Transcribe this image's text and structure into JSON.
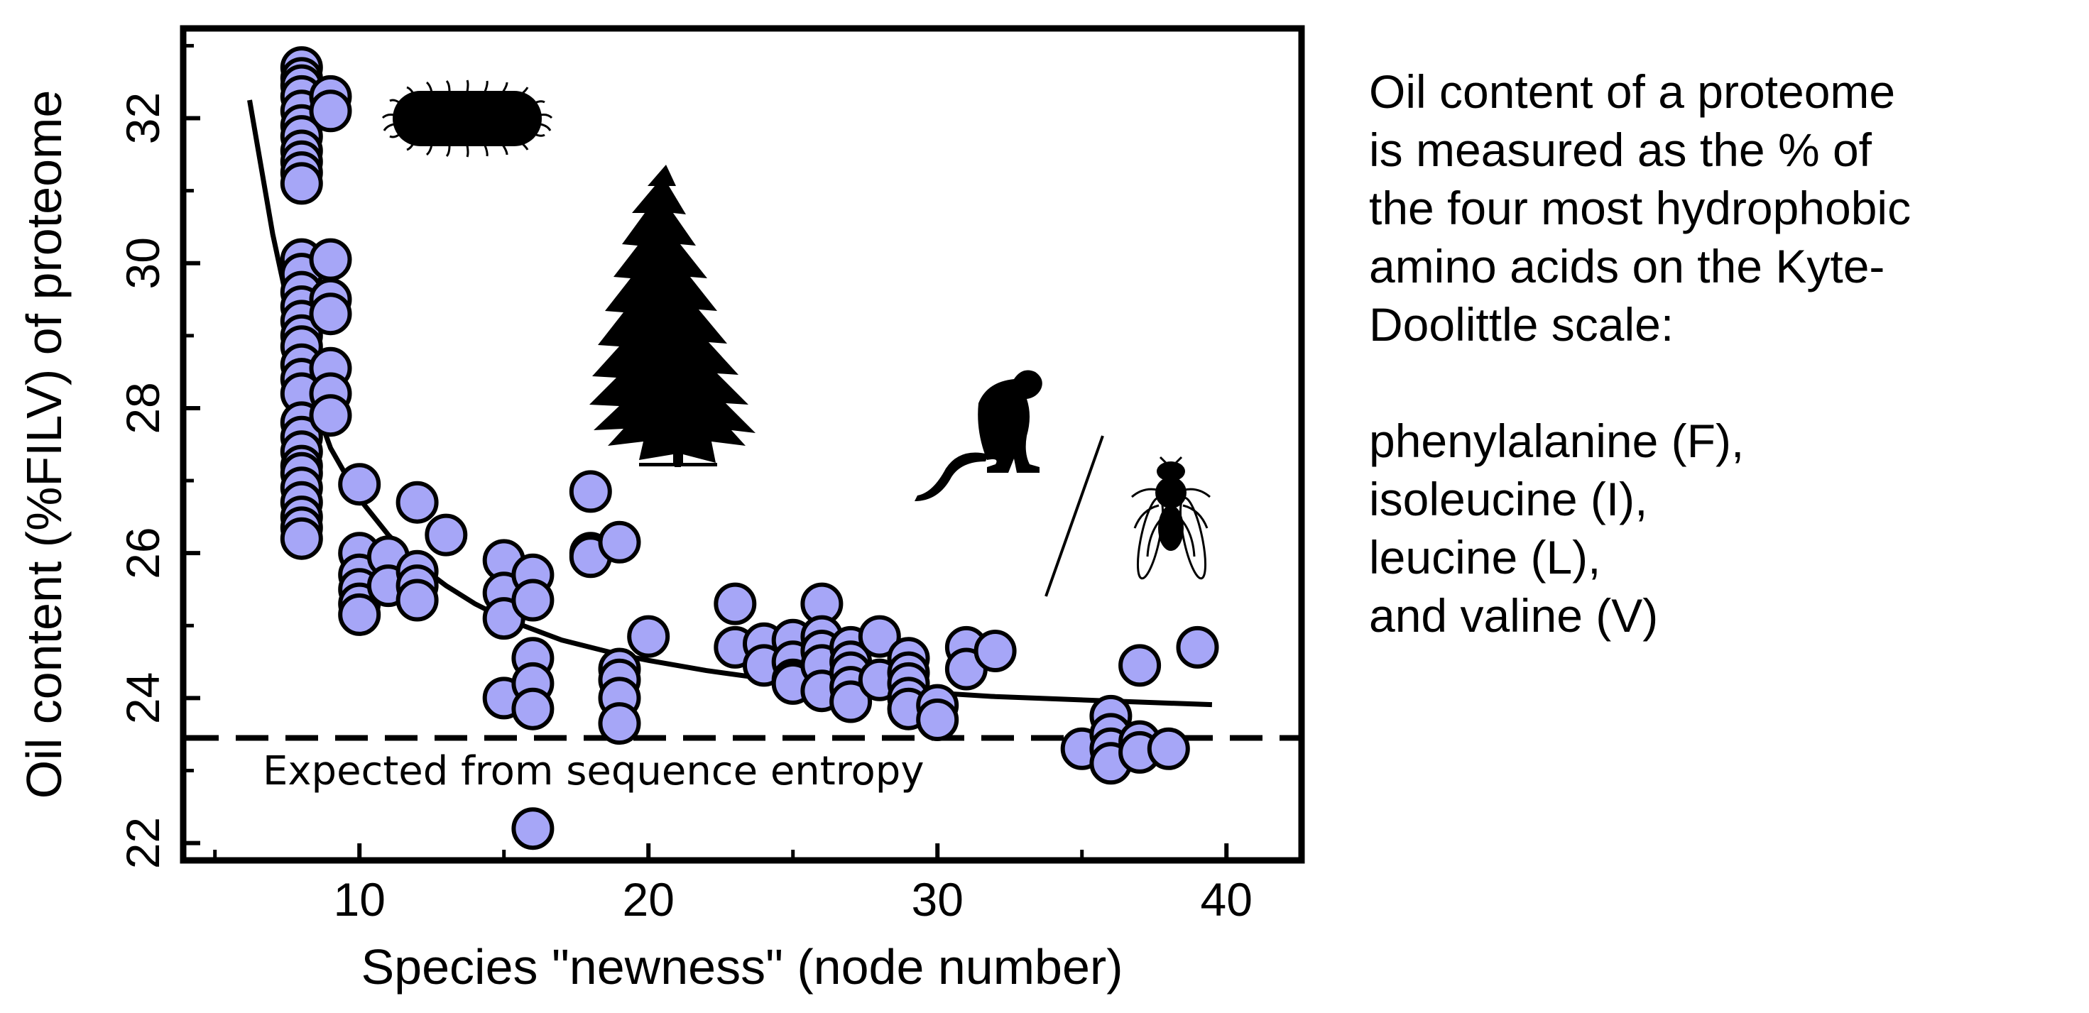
{
  "chart_data": {
    "type": "scatter",
    "xlabel": "Species \"newness\" (node number)",
    "ylabel": "Oil content (%FILV) of proteome",
    "xlim": [
      4,
      42.5
    ],
    "ylim": [
      21.8,
      33.2
    ],
    "xticks": [
      10,
      20,
      30,
      40
    ],
    "yticks": [
      22,
      24,
      26,
      28,
      30,
      32
    ],
    "grid": false,
    "colors": {
      "points": "#a6a6f7",
      "outline": "#000000",
      "fit": "#000000"
    },
    "expected": {
      "y": 23.45,
      "label": "Expected from sequence entropy"
    },
    "fit_curve": {
      "x": [
        6.2,
        7,
        8,
        9,
        10,
        11,
        12,
        13,
        14,
        15,
        16,
        17,
        18,
        19,
        20,
        22,
        24,
        26,
        28,
        30,
        32,
        34,
        36,
        38,
        39.5
      ],
      "y": [
        32.25,
        30.4,
        28.55,
        27.45,
        26.75,
        26.25,
        25.85,
        25.55,
        25.3,
        25.1,
        24.95,
        24.8,
        24.7,
        24.6,
        24.52,
        24.38,
        24.27,
        24.19,
        24.12,
        24.07,
        24.02,
        23.99,
        23.96,
        23.93,
        23.91
      ]
    },
    "points": [
      {
        "x": 8,
        "y": 32.7
      },
      {
        "x": 8,
        "y": 32.55
      },
      {
        "x": 8,
        "y": 32.45
      },
      {
        "x": 8,
        "y": 32.3
      },
      {
        "x": 8,
        "y": 32.1
      },
      {
        "x": 8,
        "y": 31.9
      },
      {
        "x": 8,
        "y": 31.75
      },
      {
        "x": 8,
        "y": 31.55
      },
      {
        "x": 8,
        "y": 31.4
      },
      {
        "x": 8,
        "y": 31.25
      },
      {
        "x": 8,
        "y": 31.1
      },
      {
        "x": 9,
        "y": 32.3
      },
      {
        "x": 9,
        "y": 32.1
      },
      {
        "x": 8,
        "y": 30.05
      },
      {
        "x": 8,
        "y": 29.85
      },
      {
        "x": 8,
        "y": 29.6
      },
      {
        "x": 8,
        "y": 29.4
      },
      {
        "x": 8,
        "y": 29.2
      },
      {
        "x": 8,
        "y": 29.0
      },
      {
        "x": 8,
        "y": 28.85
      },
      {
        "x": 8,
        "y": 28.6
      },
      {
        "x": 8,
        "y": 28.4
      },
      {
        "x": 8,
        "y": 28.2
      },
      {
        "x": 8,
        "y": 27.8
      },
      {
        "x": 8,
        "y": 27.6
      },
      {
        "x": 8,
        "y": 27.4
      },
      {
        "x": 8,
        "y": 27.2
      },
      {
        "x": 8,
        "y": 27.1
      },
      {
        "x": 8,
        "y": 26.9
      },
      {
        "x": 8,
        "y": 26.7
      },
      {
        "x": 8,
        "y": 26.5
      },
      {
        "x": 8,
        "y": 26.35
      },
      {
        "x": 8,
        "y": 26.2
      },
      {
        "x": 9,
        "y": 30.05
      },
      {
        "x": 9,
        "y": 29.5
      },
      {
        "x": 9,
        "y": 29.3
      },
      {
        "x": 9,
        "y": 28.55
      },
      {
        "x": 9,
        "y": 28.2
      },
      {
        "x": 9,
        "y": 27.9
      },
      {
        "x": 10,
        "y": 26.95
      },
      {
        "x": 10,
        "y": 26.0
      },
      {
        "x": 10,
        "y": 25.7
      },
      {
        "x": 10,
        "y": 25.5
      },
      {
        "x": 10,
        "y": 25.3
      },
      {
        "x": 10,
        "y": 25.15
      },
      {
        "x": 11,
        "y": 25.95
      },
      {
        "x": 11,
        "y": 25.55
      },
      {
        "x": 12,
        "y": 26.7
      },
      {
        "x": 12,
        "y": 25.75
      },
      {
        "x": 12,
        "y": 25.55
      },
      {
        "x": 12,
        "y": 25.35
      },
      {
        "x": 13,
        "y": 26.25
      },
      {
        "x": 15,
        "y": 25.9
      },
      {
        "x": 15,
        "y": 25.45
      },
      {
        "x": 15,
        "y": 25.1
      },
      {
        "x": 15,
        "y": 24.0
      },
      {
        "x": 16,
        "y": 25.7
      },
      {
        "x": 16,
        "y": 25.35
      },
      {
        "x": 16,
        "y": 24.55
      },
      {
        "x": 16,
        "y": 24.2
      },
      {
        "x": 16,
        "y": 23.85
      },
      {
        "x": 16,
        "y": 22.2
      },
      {
        "x": 18,
        "y": 26.85
      },
      {
        "x": 18,
        "y": 26.0
      },
      {
        "x": 18,
        "y": 25.95
      },
      {
        "x": 19,
        "y": 26.15
      },
      {
        "x": 19,
        "y": 24.4
      },
      {
        "x": 19,
        "y": 24.25
      },
      {
        "x": 19,
        "y": 24.0
      },
      {
        "x": 19,
        "y": 23.65
      },
      {
        "x": 20,
        "y": 24.85
      },
      {
        "x": 23,
        "y": 25.3
      },
      {
        "x": 23,
        "y": 24.7
      },
      {
        "x": 24,
        "y": 24.75
      },
      {
        "x": 24,
        "y": 24.45
      },
      {
        "x": 25,
        "y": 24.8
      },
      {
        "x": 25,
        "y": 24.5
      },
      {
        "x": 25,
        "y": 24.25
      },
      {
        "x": 25,
        "y": 24.2
      },
      {
        "x": 26,
        "y": 25.3
      },
      {
        "x": 26,
        "y": 24.85
      },
      {
        "x": 26,
        "y": 24.65
      },
      {
        "x": 26,
        "y": 24.45
      },
      {
        "x": 26,
        "y": 24.1
      },
      {
        "x": 27,
        "y": 24.7
      },
      {
        "x": 27,
        "y": 24.5
      },
      {
        "x": 27,
        "y": 24.35
      },
      {
        "x": 27,
        "y": 24.15
      },
      {
        "x": 27,
        "y": 23.95
      },
      {
        "x": 28,
        "y": 24.85
      },
      {
        "x": 28,
        "y": 24.25
      },
      {
        "x": 29,
        "y": 24.55
      },
      {
        "x": 29,
        "y": 24.35
      },
      {
        "x": 29,
        "y": 24.2
      },
      {
        "x": 29,
        "y": 24.0
      },
      {
        "x": 29,
        "y": 23.85
      },
      {
        "x": 30,
        "y": 23.9
      },
      {
        "x": 30,
        "y": 23.7
      },
      {
        "x": 31,
        "y": 24.7
      },
      {
        "x": 31,
        "y": 24.4
      },
      {
        "x": 32,
        "y": 24.65
      },
      {
        "x": 35,
        "y": 23.3
      },
      {
        "x": 36,
        "y": 23.75
      },
      {
        "x": 36,
        "y": 23.5
      },
      {
        "x": 36,
        "y": 23.3
      },
      {
        "x": 36,
        "y": 23.1
      },
      {
        "x": 37,
        "y": 24.45
      },
      {
        "x": 37,
        "y": 23.4
      },
      {
        "x": 37,
        "y": 23.25
      },
      {
        "x": 38,
        "y": 23.3
      },
      {
        "x": 39,
        "y": 24.7
      }
    ]
  },
  "side_note": {
    "intro": [
      "Oil content of a proteome",
      "is measured as the % of",
      "the four most hydrophobic",
      "amino acids on the Kyte-",
      "Doolittle scale:"
    ],
    "amino_acids": [
      "phenylalanine (F),",
      "isoleucine (I),",
      "leucine (L),",
      "and valine (V)"
    ]
  },
  "icons": [
    "bacterium-icon",
    "conifer-tree-icon",
    "monkey-icon",
    "fruit-fly-icon"
  ]
}
